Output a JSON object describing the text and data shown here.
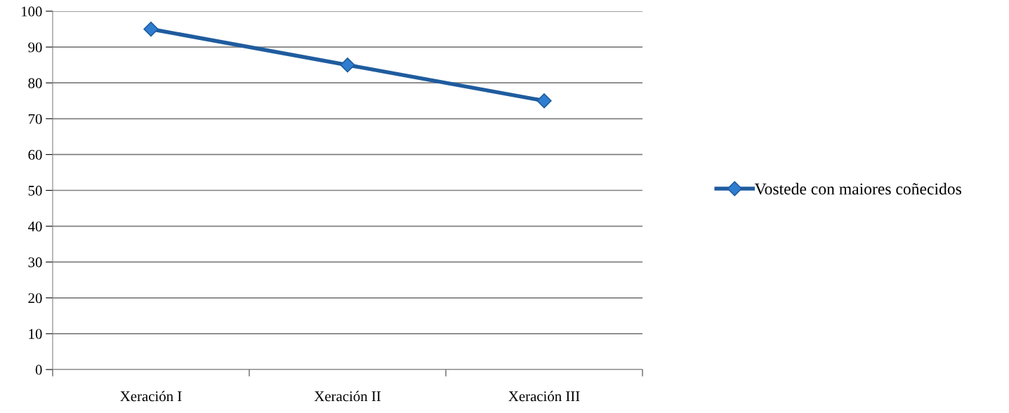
{
  "chart_data": {
    "type": "line",
    "categories": [
      "Xeración I",
      "Xeración II",
      "Xeración III"
    ],
    "series": [
      {
        "name": "Vostede con maiores coñecidos",
        "color": "#1f5c9e",
        "values": [
          95,
          85,
          75
        ]
      }
    ],
    "ylim": [
      0,
      100
    ],
    "yticks": [
      0,
      10,
      20,
      30,
      40,
      50,
      60,
      70,
      80,
      90,
      100
    ],
    "grid": "y",
    "legend": "right",
    "marker": "diamond",
    "line_style": "solid"
  }
}
